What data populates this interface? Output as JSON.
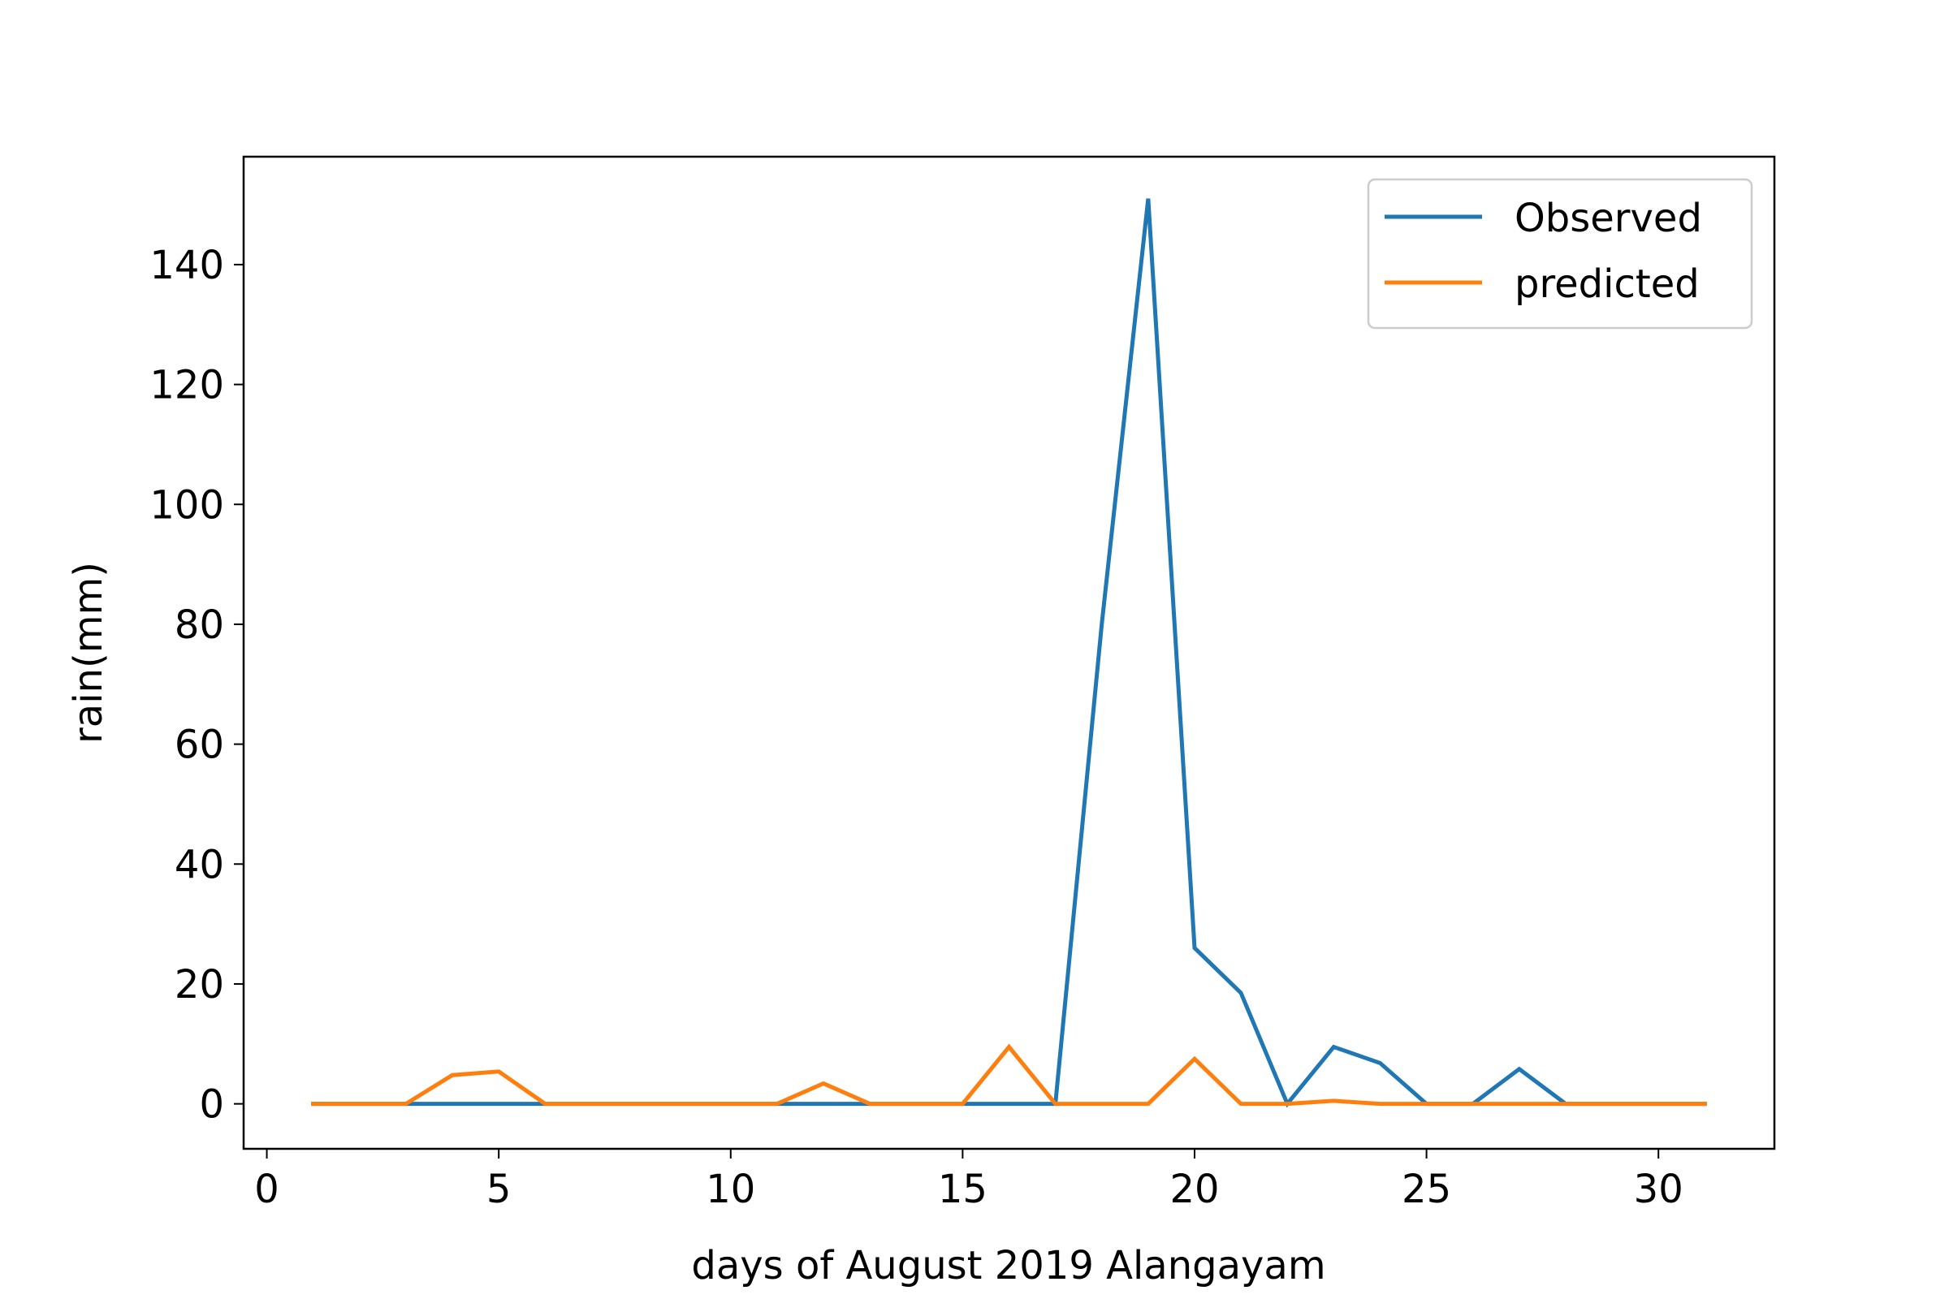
{
  "chart_data": {
    "type": "line",
    "title": "",
    "xlabel": "days of August 2019 Alangayam",
    "ylabel": "rain(mm)",
    "xlim": [
      -0.5,
      32.5
    ],
    "ylim": [
      -7.5,
      158
    ],
    "xticks": [
      0,
      5,
      10,
      15,
      20,
      25,
      30
    ],
    "yticks": [
      0,
      20,
      40,
      60,
      80,
      100,
      120,
      140
    ],
    "grid": false,
    "legend": "top-right",
    "x": [
      1,
      2,
      3,
      4,
      5,
      6,
      7,
      8,
      9,
      10,
      11,
      12,
      13,
      14,
      15,
      16,
      17,
      18,
      19,
      20,
      21,
      22,
      23,
      24,
      25,
      26,
      27,
      28,
      29,
      30,
      31
    ],
    "series": [
      {
        "name": "Observed",
        "color": "#1f77b4",
        "values": [
          0,
          0,
          0,
          0,
          0,
          0,
          0,
          0,
          0,
          0,
          0,
          0,
          0,
          0,
          0,
          0,
          0,
          80,
          151,
          26,
          18.5,
          0,
          9.5,
          6.8,
          0,
          0,
          5.8,
          0,
          0,
          0,
          0
        ]
      },
      {
        "name": "predicted",
        "color": "#ff7f0e",
        "values": [
          0,
          0,
          0,
          4.8,
          5.4,
          0,
          0,
          0,
          0,
          0,
          0,
          3.4,
          0,
          0,
          0,
          9.5,
          0,
          0,
          0,
          7.5,
          0,
          0,
          0.5,
          0,
          0,
          0,
          0,
          0,
          0,
          0,
          0
        ]
      }
    ]
  }
}
